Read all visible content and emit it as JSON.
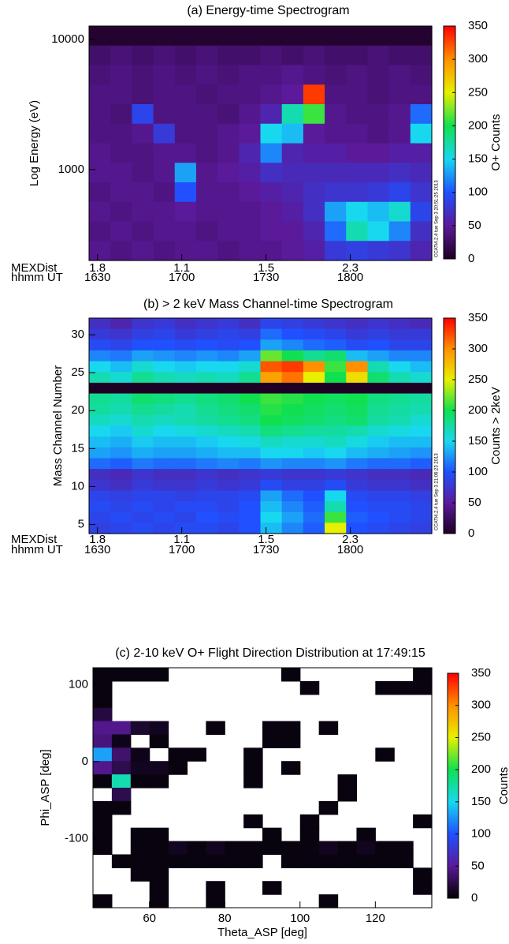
{
  "chart_data": [
    {
      "type": "heatmap",
      "title": "(a) Energy-time Spectrogram",
      "ylabel": "Log Energy (eV)",
      "colorbar_label": "O+ Counts",
      "log_y": true,
      "xlim": [
        987,
        1109
      ],
      "ylim": [
        200,
        12700
      ],
      "yticks": [
        1000,
        10000
      ],
      "xlabel": "hhmm UT",
      "xticks": [
        {
          "value": 990,
          "label": "1630"
        },
        {
          "value": 1020,
          "label": "1700"
        },
        {
          "value": 1050,
          "label": "1730"
        },
        {
          "value": 1080,
          "label": "1800"
        }
      ],
      "mexdist_label": "MEXDist",
      "mexdist": [
        1.8,
        1.1,
        1.5,
        2.3
      ],
      "stamp": "CCATi4.2.4 tue Sep  3 20:51:25 2013",
      "clim": [
        0,
        350
      ],
      "cticks": [
        0,
        50,
        100,
        150,
        200,
        250,
        300,
        350
      ],
      "colormap": [
        "#1e0024",
        "#5a1a9a",
        "#2050ff",
        "#18d8f0",
        "#10e050",
        "#e8f000",
        "#ff9000",
        "#ff0000"
      ],
      "z": [
        [
          5,
          5,
          5,
          5,
          5,
          5,
          5,
          5,
          5,
          5,
          5,
          5,
          5,
          5,
          5,
          5
        ],
        [
          30,
          35,
          30,
          35,
          30,
          35,
          30,
          30,
          35,
          30,
          35,
          30,
          30,
          35,
          30,
          30
        ],
        [
          35,
          40,
          35,
          40,
          35,
          40,
          35,
          40,
          40,
          45,
          40,
          35,
          40,
          35,
          40,
          35
        ],
        [
          40,
          40,
          35,
          40,
          40,
          35,
          40,
          40,
          45,
          50,
          330,
          40,
          40,
          35,
          40,
          40
        ],
        [
          40,
          35,
          90,
          40,
          40,
          40,
          35,
          45,
          60,
          170,
          210,
          45,
          40,
          40,
          45,
          110
        ],
        [
          40,
          40,
          45,
          80,
          40,
          40,
          45,
          50,
          150,
          140,
          50,
          45,
          45,
          40,
          45,
          150
        ],
        [
          45,
          40,
          40,
          45,
          45,
          40,
          45,
          60,
          120,
          60,
          55,
          55,
          50,
          50,
          55,
          55
        ],
        [
          45,
          45,
          40,
          45,
          130,
          45,
          50,
          55,
          70,
          65,
          65,
          65,
          65,
          65,
          70,
          65
        ],
        [
          40,
          45,
          45,
          40,
          100,
          45,
          45,
          50,
          55,
          60,
          70,
          75,
          75,
          80,
          90,
          75
        ],
        [
          45,
          40,
          45,
          45,
          50,
          45,
          45,
          45,
          50,
          55,
          70,
          130,
          150,
          140,
          160,
          90
        ],
        [
          40,
          45,
          40,
          45,
          45,
          40,
          45,
          45,
          50,
          50,
          60,
          110,
          170,
          150,
          120,
          70
        ],
        [
          45,
          40,
          45,
          40,
          45,
          45,
          40,
          45,
          45,
          50,
          55,
          80,
          85,
          80,
          75,
          60
        ]
      ]
    },
    {
      "type": "heatmap",
      "title": "(b) > 2 keV Mass Channel-time Spectrogram",
      "ylabel": "Mass Channel Number",
      "colorbar_label": "Counts > 2keV",
      "log_y": false,
      "xlim": [
        987,
        1109
      ],
      "ylim": [
        3.8,
        32.2
      ],
      "yticks": [
        5,
        10,
        15,
        20,
        25,
        30
      ],
      "xlabel": "hhmm UT",
      "xticks": [
        {
          "value": 990,
          "label": "1630"
        },
        {
          "value": 1020,
          "label": "1700"
        },
        {
          "value": 1050,
          "label": "1730"
        },
        {
          "value": 1080,
          "label": "1800"
        }
      ],
      "mexdist_label": "MEXDist",
      "mexdist": [
        1.8,
        1.1,
        1.5,
        2.3
      ],
      "stamp": "CCATi4.2.4 tue Sep  3 21:06:23 2013",
      "clim": [
        0,
        350
      ],
      "cticks": [
        0,
        50,
        100,
        150,
        200,
        250,
        300,
        350
      ],
      "colormap": [
        "#1e0024",
        "#5a1a9a",
        "#2050ff",
        "#18d8f0",
        "#10e050",
        "#e8f000",
        "#ff9000",
        "#ff0000"
      ],
      "z": [
        [
          70,
          60,
          75,
          80,
          70,
          75,
          80,
          70,
          90,
          85,
          80,
          75,
          70,
          75,
          70,
          65
        ],
        [
          80,
          75,
          85,
          90,
          80,
          85,
          90,
          85,
          110,
          100,
          95,
          90,
          80,
          85,
          80,
          80
        ],
        [
          95,
          90,
          100,
          100,
          95,
          100,
          95,
          100,
          130,
          120,
          110,
          105,
          95,
          100,
          90,
          90
        ],
        [
          120,
          115,
          130,
          125,
          120,
          125,
          120,
          130,
          220,
          200,
          180,
          190,
          140,
          130,
          120,
          120
        ],
        [
          150,
          140,
          160,
          150,
          145,
          150,
          150,
          160,
          320,
          330,
          300,
          210,
          300,
          170,
          150,
          140
        ],
        [
          170,
          160,
          180,
          170,
          165,
          170,
          165,
          180,
          290,
          310,
          250,
          200,
          260,
          190,
          170,
          160
        ],
        [
          0,
          0,
          0,
          0,
          0,
          0,
          0,
          0,
          0,
          0,
          0,
          0,
          0,
          0,
          0,
          0
        ],
        [
          180,
          175,
          190,
          185,
          180,
          185,
          190,
          200,
          210,
          205,
          200,
          195,
          200,
          185,
          180,
          175
        ],
        [
          175,
          170,
          180,
          175,
          170,
          180,
          185,
          190,
          205,
          200,
          195,
          190,
          195,
          180,
          175,
          170
        ],
        [
          165,
          160,
          170,
          165,
          170,
          175,
          180,
          185,
          200,
          195,
          190,
          185,
          190,
          175,
          170,
          160
        ],
        [
          150,
          145,
          160,
          150,
          155,
          160,
          165,
          170,
          185,
          180,
          175,
          175,
          170,
          160,
          155,
          150
        ],
        [
          140,
          135,
          145,
          140,
          140,
          145,
          150,
          155,
          165,
          160,
          160,
          165,
          155,
          145,
          140,
          140
        ],
        [
          130,
          125,
          135,
          130,
          130,
          135,
          140,
          140,
          150,
          150,
          145,
          150,
          140,
          135,
          130,
          125
        ],
        [
          110,
          105,
          115,
          110,
          110,
          115,
          120,
          115,
          125,
          120,
          120,
          125,
          115,
          110,
          110,
          105
        ],
        [
          70,
          65,
          75,
          70,
          70,
          75,
          70,
          75,
          80,
          75,
          75,
          80,
          75,
          70,
          70,
          65
        ],
        [
          75,
          70,
          80,
          75,
          75,
          80,
          75,
          80,
          95,
          85,
          85,
          95,
          80,
          75,
          75,
          70
        ],
        [
          90,
          85,
          90,
          90,
          85,
          90,
          90,
          95,
          130,
          110,
          100,
          150,
          95,
          90,
          90,
          85
        ],
        [
          95,
          90,
          95,
          90,
          95,
          95,
          90,
          100,
          140,
          120,
          105,
          170,
          100,
          95,
          95,
          90
        ],
        [
          90,
          95,
          90,
          95,
          90,
          100,
          95,
          100,
          150,
          130,
          110,
          210,
          105,
          100,
          95,
          90
        ],
        [
          85,
          90,
          95,
          90,
          95,
          95,
          90,
          100,
          140,
          120,
          105,
          250,
          100,
          95,
          90,
          85
        ]
      ]
    },
    {
      "type": "heatmap",
      "title": "(c) 2-10 keV O+ Flight Direction Distribution at 17:49:15",
      "ylabel": "Phi_ASP [deg]",
      "xlabel": "Theta_ASP [deg]",
      "colorbar_label": "Counts",
      "log_y": false,
      "xlim": [
        45,
        135
      ],
      "ylim": [
        -190,
        122
      ],
      "xticks": [
        60,
        80,
        100,
        120
      ],
      "yticks": [
        -100,
        0,
        100
      ],
      "clim": [
        0,
        350
      ],
      "cticks": [
        0,
        50,
        100,
        150,
        200,
        250,
        300,
        350
      ],
      "colormap": [
        "#000000",
        "#5a1a9a",
        "#2050ff",
        "#18d8f0",
        "#10e050",
        "#e8f000",
        "#ff9000",
        "#ff0000"
      ],
      "z": [
        [
          5,
          5,
          5,
          5,
          null,
          null,
          null,
          null,
          null,
          null,
          5,
          null,
          null,
          null,
          null,
          null,
          null,
          5
        ],
        [
          5,
          null,
          null,
          null,
          null,
          null,
          null,
          null,
          null,
          null,
          null,
          5,
          null,
          null,
          null,
          5,
          5,
          5
        ],
        [
          5,
          null,
          null,
          null,
          null,
          null,
          null,
          null,
          null,
          null,
          null,
          null,
          null,
          null,
          null,
          null,
          null,
          null
        ],
        [
          20,
          null,
          null,
          null,
          null,
          null,
          null,
          null,
          null,
          null,
          null,
          null,
          null,
          null,
          null,
          null,
          null,
          null
        ],
        [
          45,
          45,
          15,
          10,
          null,
          null,
          5,
          null,
          null,
          5,
          5,
          null,
          5,
          null,
          null,
          null,
          null,
          null
        ],
        [
          40,
          8,
          null,
          5,
          null,
          null,
          null,
          null,
          null,
          5,
          5,
          null,
          null,
          null,
          null,
          null,
          null,
          null
        ],
        [
          130,
          35,
          8,
          null,
          5,
          5,
          null,
          null,
          5,
          null,
          null,
          null,
          null,
          null,
          null,
          5,
          null,
          null
        ],
        [
          45,
          25,
          10,
          10,
          5,
          null,
          null,
          null,
          5,
          null,
          5,
          null,
          null,
          null,
          null,
          null,
          null,
          null
        ],
        [
          5,
          170,
          5,
          5,
          null,
          null,
          null,
          null,
          5,
          null,
          null,
          null,
          null,
          5,
          null,
          null,
          null,
          null
        ],
        [
          null,
          25,
          null,
          null,
          null,
          null,
          null,
          null,
          null,
          null,
          null,
          null,
          null,
          5,
          null,
          null,
          null,
          null
        ],
        [
          5,
          5,
          null,
          null,
          null,
          null,
          null,
          null,
          null,
          null,
          null,
          null,
          5,
          null,
          null,
          null,
          null,
          null
        ],
        [
          5,
          null,
          null,
          null,
          null,
          null,
          null,
          null,
          5,
          null,
          null,
          5,
          null,
          null,
          null,
          null,
          null,
          5
        ],
        [
          5,
          null,
          5,
          5,
          null,
          null,
          null,
          null,
          null,
          5,
          null,
          5,
          null,
          null,
          5,
          null,
          null,
          null
        ],
        [
          5,
          null,
          5,
          5,
          10,
          5,
          10,
          5,
          5,
          5,
          5,
          5,
          10,
          5,
          10,
          5,
          5,
          null
        ],
        [
          null,
          5,
          5,
          5,
          5,
          5,
          5,
          5,
          5,
          null,
          5,
          5,
          5,
          5,
          5,
          5,
          5,
          null
        ],
        [
          null,
          null,
          5,
          5,
          null,
          null,
          null,
          null,
          null,
          null,
          null,
          null,
          null,
          null,
          null,
          null,
          null,
          5
        ],
        [
          null,
          null,
          null,
          5,
          null,
          null,
          5,
          null,
          null,
          5,
          null,
          null,
          null,
          null,
          null,
          null,
          null,
          5
        ],
        [
          5,
          null,
          null,
          5,
          null,
          null,
          5,
          null,
          null,
          null,
          null,
          null,
          5,
          null,
          null,
          null,
          null,
          null
        ]
      ]
    }
  ]
}
